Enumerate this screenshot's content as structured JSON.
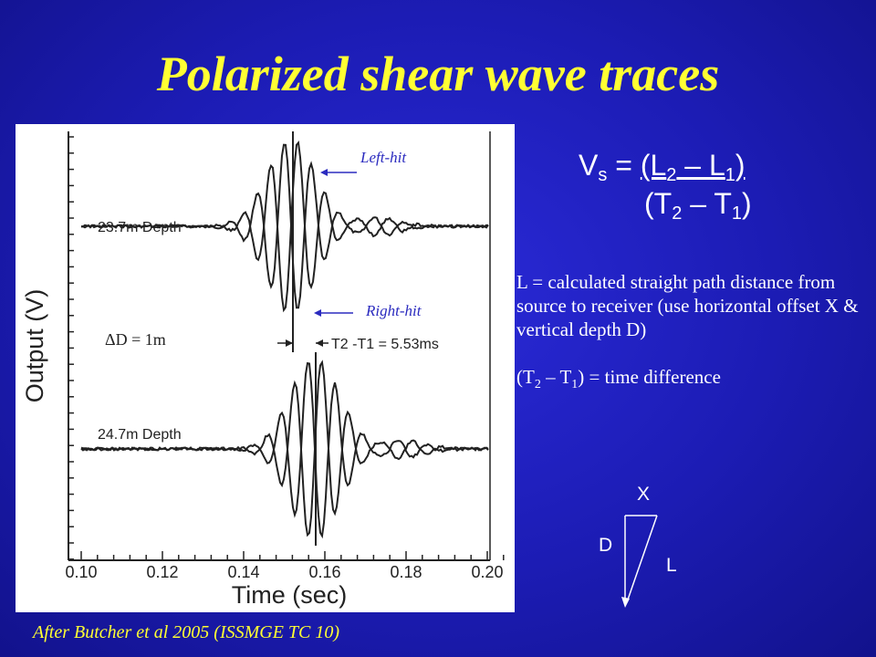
{
  "slide": {
    "title": "Polarized shear wave traces",
    "caption": "After Butcher et al 2005 (ISSMGE TC 10)"
  },
  "figure": {
    "y_axis_label": "Output (V)",
    "x_axis_label": "Time (sec)",
    "x_ticks": [
      "0.10",
      "0.12",
      "0.14",
      "0.16",
      "0.18",
      "0.20"
    ],
    "trace_top_label": "23.7m Depth",
    "trace_bottom_label": "24.7m Depth",
    "time_diff_label": "T2 -T1 = 5.53ms",
    "left_hit_label": "Left-hit",
    "right_hit_label": "Right-hit",
    "delta_d_label": "ΔD = 1m",
    "colors": {
      "traces": "#222222",
      "annotation": "#2b2bbf"
    }
  },
  "formula": {
    "lhs": "V",
    "lhs_sub": "s",
    "eq": " = ",
    "num_open": "(L",
    "num_sub1": "2",
    "num_mid": " – L",
    "num_sub2": "1",
    "num_close": ")",
    "den_open": "(T",
    "den_sub1": "2",
    "den_mid": " – T",
    "den_sub2": "1",
    "den_close": ")"
  },
  "description": {
    "l_definition": "L = calculated straight path distance from source to receiver (use horizontal offset X & vertical depth D)",
    "t_open": "(T",
    "t_sub1": "2",
    "t_mid": " – T",
    "t_sub2": "1",
    "t_close": ") = time difference"
  },
  "triangle": {
    "x_label": "X",
    "d_label": "D",
    "l_label": "L"
  }
}
